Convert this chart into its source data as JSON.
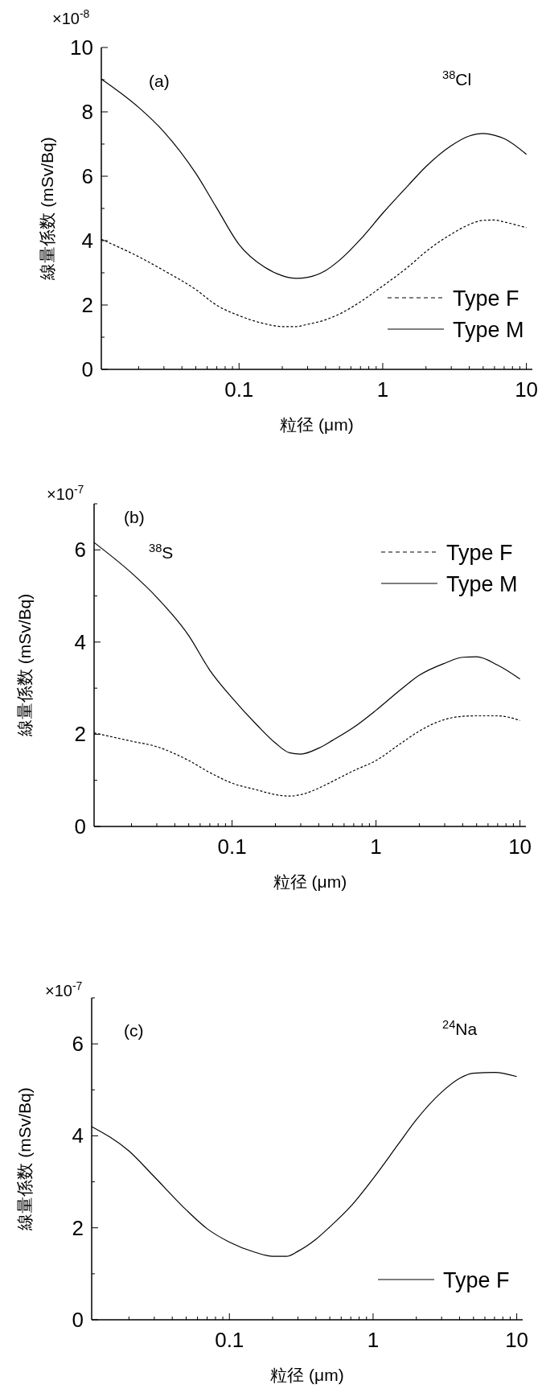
{
  "chart_data": [
    {
      "type": "line",
      "xlabel": "粒径 (μm)",
      "ylabel": "線量係数 (mSv/Bq)",
      "log": "x",
      "legend": "bottom right",
      "grid": false,
      "annotations": [
        "×10$^{-8}$",
        "(a)",
        "$^{38}$Cl"
      ],
      "xlim": [
        0.011,
        11
      ],
      "xticks": [
        {
          "value": 0.02,
          "label": null
        },
        {
          "value": 0.03,
          "label": null
        },
        {
          "value": 0.04,
          "label": null
        },
        {
          "value": 0.05,
          "label": null
        },
        {
          "value": 0.06,
          "label": null
        },
        {
          "value": 0.07,
          "label": null
        },
        {
          "value": 0.08,
          "label": null
        },
        {
          "value": 0.09,
          "label": null
        },
        0.1,
        {
          "value": 0.2,
          "label": null
        },
        {
          "value": 0.3,
          "label": null
        },
        {
          "value": 0.4,
          "label": null
        },
        {
          "value": 0.5,
          "label": null
        },
        {
          "value": 0.6,
          "label": null
        },
        {
          "value": 0.7,
          "label": null
        },
        {
          "value": 0.8,
          "label": null
        },
        {
          "value": 0.9,
          "label": null
        },
        1,
        {
          "value": 2,
          "label": null
        },
        {
          "value": 3,
          "label": null
        },
        {
          "value": 4,
          "label": null
        },
        {
          "value": 5,
          "label": null
        },
        {
          "value": 6,
          "label": null
        },
        {
          "value": 7,
          "label": null
        },
        {
          "value": 8,
          "label": null
        },
        {
          "value": 9,
          "label": null
        },
        10
      ],
      "ylim": [
        0,
        10
      ],
      "yticks": [
        0,
        {
          "value": 1,
          "label": null
        },
        2,
        {
          "value": 3,
          "label": null
        },
        4,
        {
          "value": 5,
          "label": null
        },
        6,
        {
          "value": 7,
          "label": null
        },
        8,
        {
          "value": 9,
          "label": null
        },
        10
      ],
      "x": [
        0.011,
        0.02,
        0.03,
        0.05,
        0.07,
        0.1,
        0.15,
        0.2,
        0.25,
        0.3,
        0.4,
        0.5,
        0.7,
        1,
        1.5,
        2,
        3,
        4,
        5,
        6,
        7,
        10
      ],
      "series": [
        {
          "name": "Type F",
          "color": "#000000",
          "line_style": "dashed",
          "values": [
            4.04,
            3.5,
            3.07,
            2.48,
            1.99,
            1.67,
            1.42,
            1.33,
            1.33,
            1.4,
            1.54,
            1.72,
            2.1,
            2.59,
            3.18,
            3.66,
            4.2,
            4.5,
            4.63,
            4.64,
            4.58,
            4.4
          ]
        },
        {
          "name": "Type M",
          "color": "#000000",
          "line_style": "solid",
          "values": [
            9.02,
            8.14,
            7.38,
            6.09,
            5.01,
            3.88,
            3.18,
            2.91,
            2.83,
            2.86,
            3.07,
            3.39,
            4.04,
            4.85,
            5.71,
            6.3,
            6.95,
            7.25,
            7.33,
            7.27,
            7.17,
            6.68
          ]
        }
      ]
    },
    {
      "type": "line",
      "xlabel": "粒径 (μm)",
      "ylabel": "線量係数 (mSv/Bq)",
      "log": "x",
      "legend": "top right",
      "grid": false,
      "annotations": [
        "×10$^{-7}$",
        "(b)",
        "$^{38}$S"
      ],
      "xlim": [
        0.011,
        11
      ],
      "xticks": [
        {
          "value": 0.02,
          "label": null
        },
        {
          "value": 0.03,
          "label": null
        },
        {
          "value": 0.04,
          "label": null
        },
        {
          "value": 0.05,
          "label": null
        },
        {
          "value": 0.06,
          "label": null
        },
        {
          "value": 0.07,
          "label": null
        },
        {
          "value": 0.08,
          "label": null
        },
        {
          "value": 0.09,
          "label": null
        },
        0.1,
        {
          "value": 0.2,
          "label": null
        },
        {
          "value": 0.3,
          "label": null
        },
        {
          "value": 0.4,
          "label": null
        },
        {
          "value": 0.5,
          "label": null
        },
        {
          "value": 0.6,
          "label": null
        },
        {
          "value": 0.7,
          "label": null
        },
        {
          "value": 0.8,
          "label": null
        },
        {
          "value": 0.9,
          "label": null
        },
        1,
        {
          "value": 2,
          "label": null
        },
        {
          "value": 3,
          "label": null
        },
        {
          "value": 4,
          "label": null
        },
        {
          "value": 5,
          "label": null
        },
        {
          "value": 6,
          "label": null
        },
        {
          "value": 7,
          "label": null
        },
        {
          "value": 8,
          "label": null
        },
        {
          "value": 9,
          "label": null
        },
        10
      ],
      "ylim": [
        0,
        7
      ],
      "yticks": [
        0,
        {
          "value": 1,
          "label": null
        },
        2,
        {
          "value": 3,
          "label": null
        },
        4,
        {
          "value": 5,
          "label": null
        },
        6,
        {
          "value": 7,
          "label": null
        }
      ],
      "x": [
        0.011,
        0.02,
        0.03,
        0.05,
        0.07,
        0.1,
        0.15,
        0.2,
        0.25,
        0.3,
        0.4,
        0.5,
        0.7,
        1,
        1.5,
        2,
        3,
        4,
        5,
        7,
        10
      ],
      "series": [
        {
          "name": "Type F",
          "color": "#000000",
          "line_style": "dashed",
          "values": [
            2.03,
            1.85,
            1.73,
            1.43,
            1.17,
            0.94,
            0.79,
            0.69,
            0.66,
            0.69,
            0.83,
            0.98,
            1.21,
            1.43,
            1.81,
            2.07,
            2.32,
            2.39,
            2.4,
            2.4,
            2.3
          ]
        },
        {
          "name": "Type M",
          "color": "#000000",
          "line_style": "solid",
          "values": [
            6.16,
            5.5,
            4.97,
            4.14,
            3.39,
            2.79,
            2.19,
            1.81,
            1.6,
            1.57,
            1.7,
            1.87,
            2.15,
            2.52,
            2.98,
            3.28,
            3.54,
            3.67,
            3.68,
            3.5,
            3.2
          ]
        }
      ]
    },
    {
      "type": "line",
      "xlabel": "粒径 (μm)",
      "ylabel": "線量係数 (mSv/Bq)",
      "log": "x",
      "legend": "bottom right",
      "grid": false,
      "annotations": [
        "×10$^{-7}$",
        "(c)",
        "$^{24}$Na"
      ],
      "xlim": [
        0.011,
        11
      ],
      "xticks": [
        {
          "value": 0.02,
          "label": null
        },
        {
          "value": 0.03,
          "label": null
        },
        {
          "value": 0.04,
          "label": null
        },
        {
          "value": 0.05,
          "label": null
        },
        {
          "value": 0.06,
          "label": null
        },
        {
          "value": 0.07,
          "label": null
        },
        {
          "value": 0.08,
          "label": null
        },
        {
          "value": 0.09,
          "label": null
        },
        0.1,
        {
          "value": 0.2,
          "label": null
        },
        {
          "value": 0.3,
          "label": null
        },
        {
          "value": 0.4,
          "label": null
        },
        {
          "value": 0.5,
          "label": null
        },
        {
          "value": 0.6,
          "label": null
        },
        {
          "value": 0.7,
          "label": null
        },
        {
          "value": 0.8,
          "label": null
        },
        {
          "value": 0.9,
          "label": null
        },
        1,
        {
          "value": 2,
          "label": null
        },
        {
          "value": 3,
          "label": null
        },
        {
          "value": 4,
          "label": null
        },
        {
          "value": 5,
          "label": null
        },
        {
          "value": 6,
          "label": null
        },
        {
          "value": 7,
          "label": null
        },
        {
          "value": 8,
          "label": null
        },
        {
          "value": 9,
          "label": null
        },
        10
      ],
      "ylim": [
        0,
        7
      ],
      "yticks": [
        0,
        {
          "value": 1,
          "label": null
        },
        2,
        {
          "value": 3,
          "label": null
        },
        4,
        {
          "value": 5,
          "label": null
        },
        6,
        {
          "value": 7,
          "label": null
        }
      ],
      "x": [
        0.011,
        0.02,
        0.03,
        0.05,
        0.07,
        0.1,
        0.15,
        0.2,
        0.25,
        0.3,
        0.4,
        0.5,
        0.7,
        1,
        1.5,
        2,
        3,
        4,
        5,
        7,
        10
      ],
      "series": [
        {
          "name": "Type F",
          "color": "#000000",
          "line_style": "solid",
          "values": [
            4.2,
            3.67,
            3.11,
            2.39,
            1.98,
            1.69,
            1.47,
            1.38,
            1.38,
            1.49,
            1.75,
            2.02,
            2.47,
            3.07,
            3.82,
            4.35,
            4.95,
            5.25,
            5.36,
            5.38,
            5.29
          ]
        }
      ]
    }
  ]
}
